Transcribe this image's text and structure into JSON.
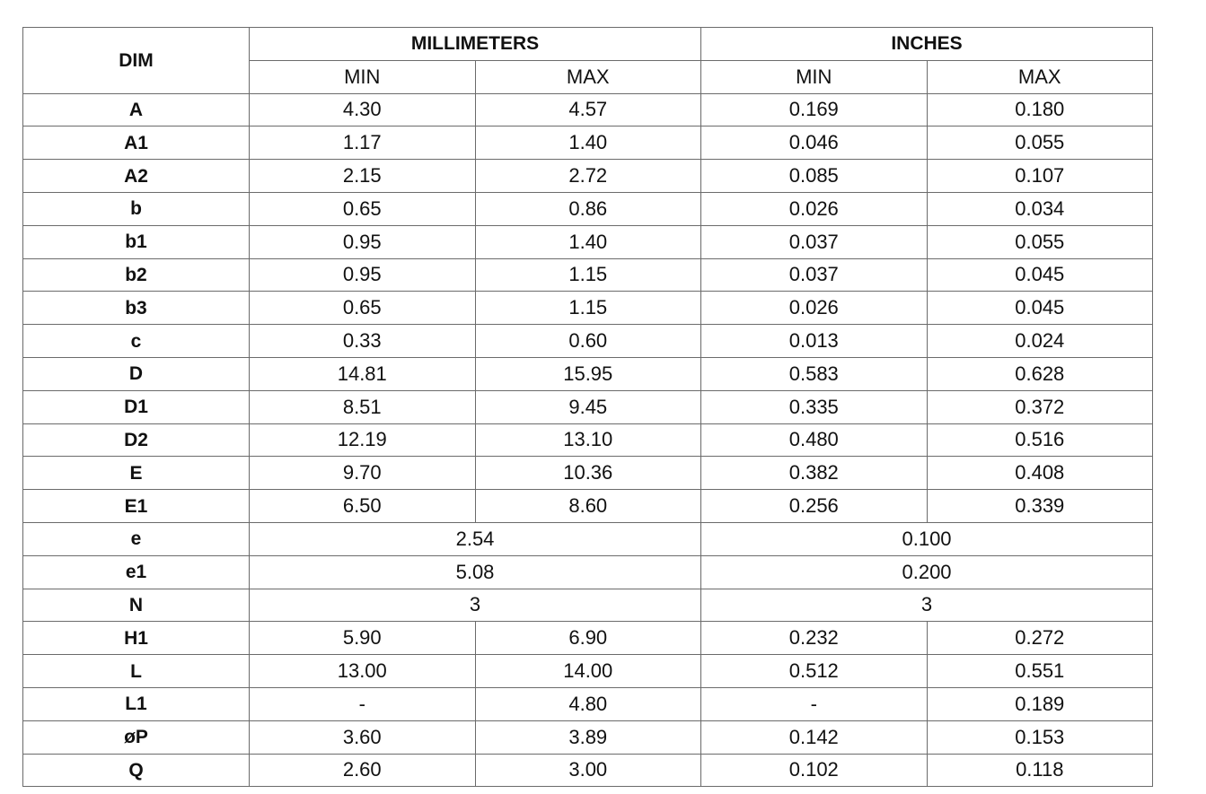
{
  "header": {
    "dim": "DIM",
    "millimeters": "MILLIMETERS",
    "inches": "INCHES",
    "mm_min": "MIN",
    "mm_max": "MAX",
    "in_min": "MIN",
    "in_max": "MAX"
  },
  "rows": [
    {
      "dim": "A",
      "mm_min": "4.30",
      "mm_max": "4.57",
      "in_min": "0.169",
      "in_max": "0.180"
    },
    {
      "dim": "A1",
      "mm_min": "1.17",
      "mm_max": "1.40",
      "in_min": "0.046",
      "in_max": "0.055"
    },
    {
      "dim": "A2",
      "mm_min": "2.15",
      "mm_max": "2.72",
      "in_min": "0.085",
      "in_max": "0.107"
    },
    {
      "dim": "b",
      "mm_min": "0.65",
      "mm_max": "0.86",
      "in_min": "0.026",
      "in_max": "0.034"
    },
    {
      "dim": "b1",
      "mm_min": "0.95",
      "mm_max": "1.40",
      "in_min": "0.037",
      "in_max": "0.055"
    },
    {
      "dim": "b2",
      "mm_min": "0.95",
      "mm_max": "1.15",
      "in_min": "0.037",
      "in_max": "0.045"
    },
    {
      "dim": "b3",
      "mm_min": "0.65",
      "mm_max": "1.15",
      "in_min": "0.026",
      "in_max": "0.045"
    },
    {
      "dim": "c",
      "mm_min": "0.33",
      "mm_max": "0.60",
      "in_min": "0.013",
      "in_max": "0.024"
    },
    {
      "dim": "D",
      "mm_min": "14.81",
      "mm_max": "15.95",
      "in_min": "0.583",
      "in_max": "0.628"
    },
    {
      "dim": "D1",
      "mm_min": "8.51",
      "mm_max": "9.45",
      "in_min": "0.335",
      "in_max": "0.372"
    },
    {
      "dim": "D2",
      "mm_min": "12.19",
      "mm_max": "13.10",
      "in_min": "0.480",
      "in_max": "0.516"
    },
    {
      "dim": "E",
      "mm_min": "9.70",
      "mm_max": "10.36",
      "in_min": "0.382",
      "in_max": "0.408"
    },
    {
      "dim": "E1",
      "mm_min": "6.50",
      "mm_max": "8.60",
      "in_min": "0.256",
      "in_max": "0.339"
    },
    {
      "dim": "e",
      "mm": "2.54",
      "in": "0.100"
    },
    {
      "dim": "e1",
      "mm": "5.08",
      "in": "0.200"
    },
    {
      "dim": "N",
      "mm": "3",
      "in": "3"
    },
    {
      "dim": "H1",
      "mm_min": "5.90",
      "mm_max": "6.90",
      "in_min": "0.232",
      "in_max": "0.272"
    },
    {
      "dim": "L",
      "mm_min": "13.00",
      "mm_max": "14.00",
      "in_min": "0.512",
      "in_max": "0.551"
    },
    {
      "dim": "L1",
      "mm_min": "-",
      "mm_max": "4.80",
      "in_min": "-",
      "in_max": "0.189"
    },
    {
      "dim": "øP",
      "mm_min": "3.60",
      "mm_max": "3.89",
      "in_min": "0.142",
      "in_max": "0.153"
    },
    {
      "dim": "Q",
      "mm_min": "2.60",
      "mm_max": "3.00",
      "in_min": "0.102",
      "in_max": "0.118"
    }
  ]
}
